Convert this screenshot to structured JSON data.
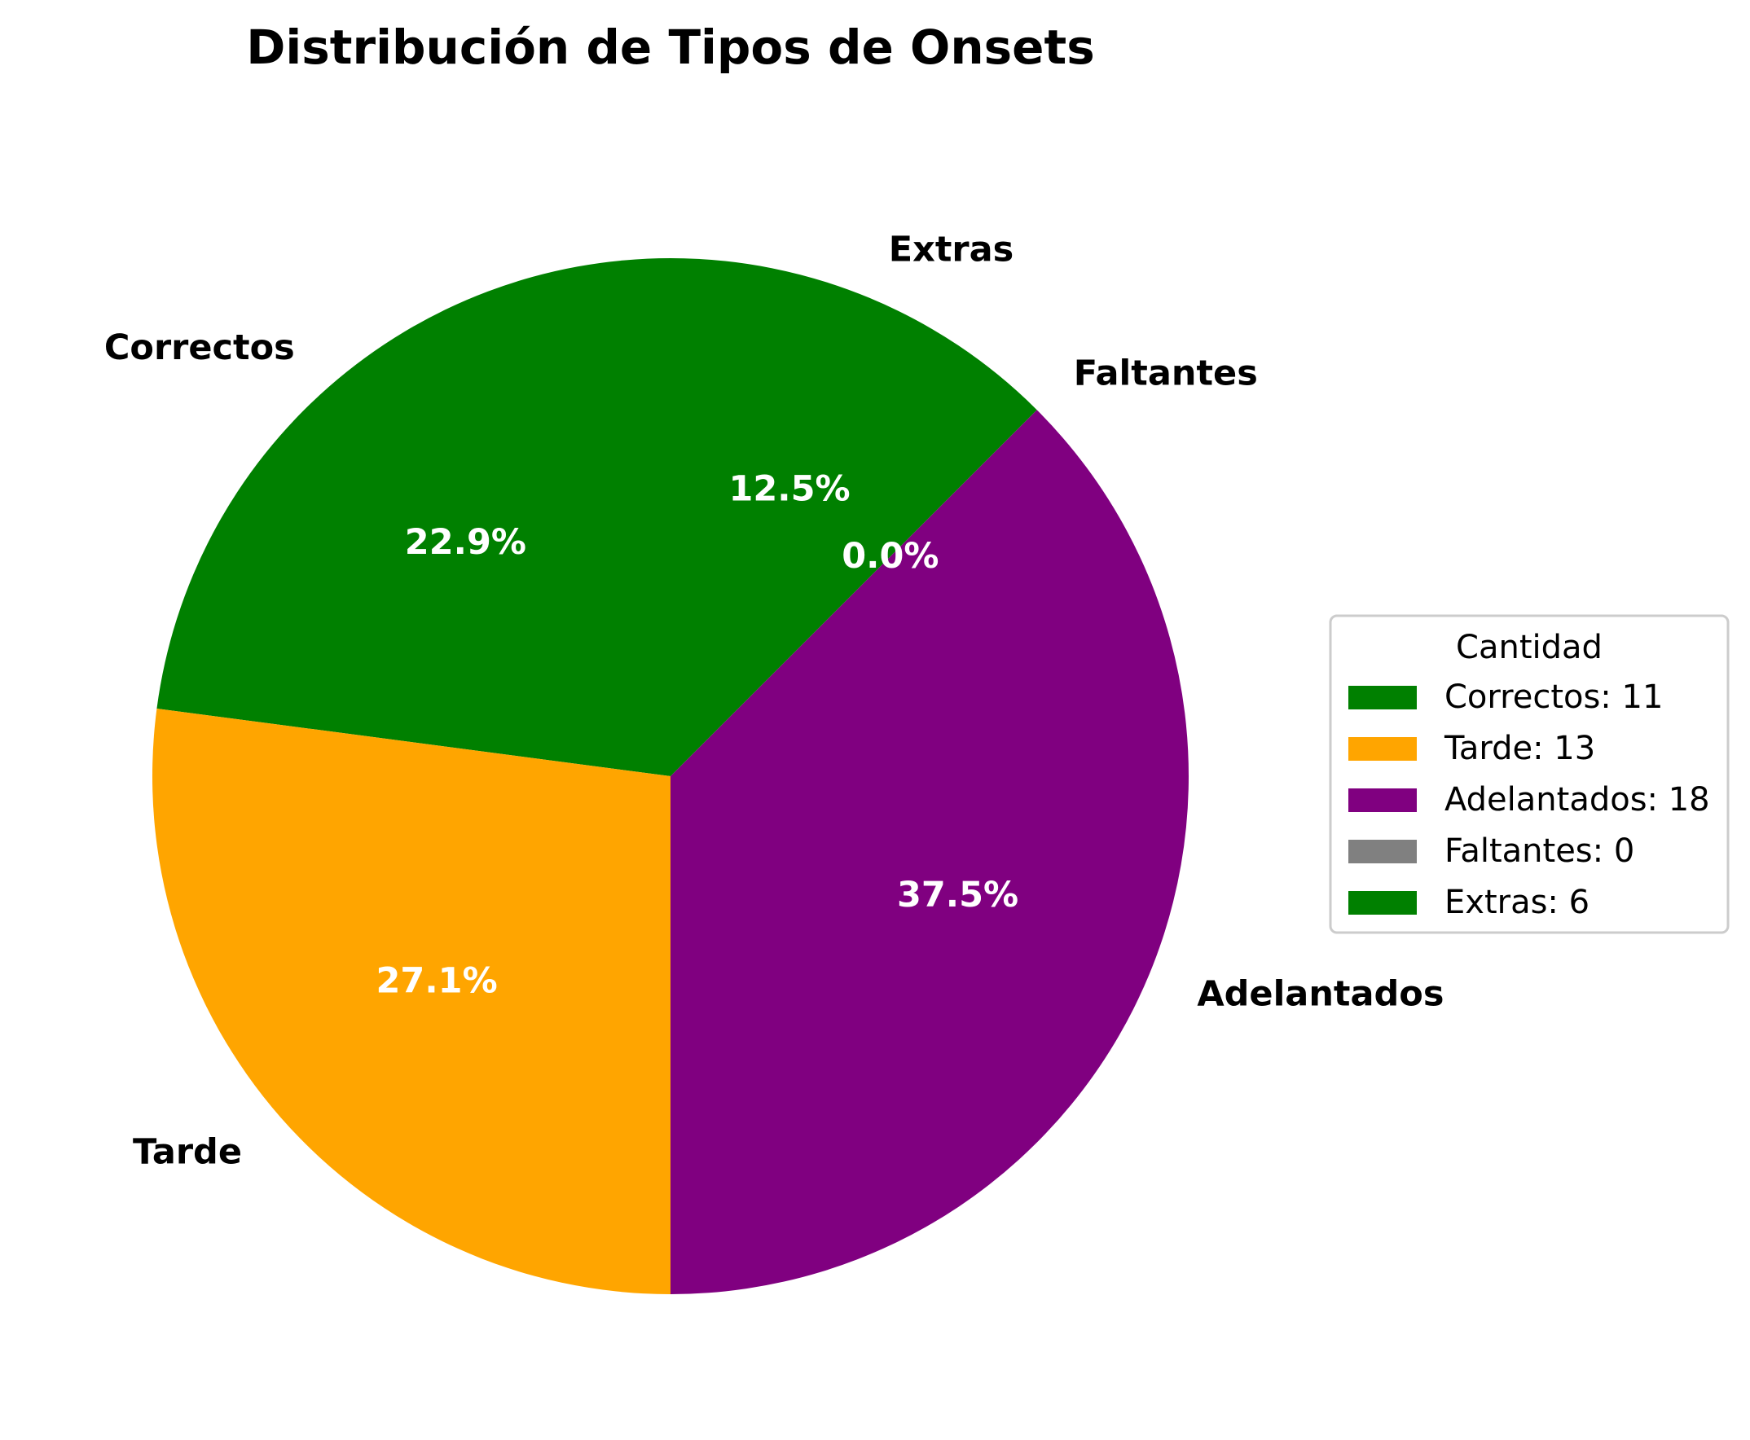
{
  "chart_data": {
    "type": "pie",
    "title": "Distribución de Tipos de Onsets",
    "legend_title": "Cantidad",
    "legend_placement": "right",
    "start_angle_deg": 90,
    "direction": "counterclockwise",
    "slices": [
      {
        "label": "Correctos",
        "value": 11,
        "percent_label": "22.9%",
        "legend_label": "Correctos: 11",
        "color": "#008000"
      },
      {
        "label": "Tarde",
        "value": 13,
        "percent_label": "27.1%",
        "legend_label": "Tarde: 13",
        "color": "#FFA500"
      },
      {
        "label": "Adelantados",
        "value": 18,
        "percent_label": "37.5%",
        "legend_label": "Adelantados: 18",
        "color": "#800080"
      },
      {
        "label": "Faltantes",
        "value": 0,
        "percent_label": "0.0%",
        "legend_label": "Faltantes: 0",
        "color": "#808080"
      },
      {
        "label": "Extras",
        "value": 6,
        "percent_label": "12.5%",
        "legend_label": "Extras: 6",
        "color": "#008000"
      }
    ]
  }
}
